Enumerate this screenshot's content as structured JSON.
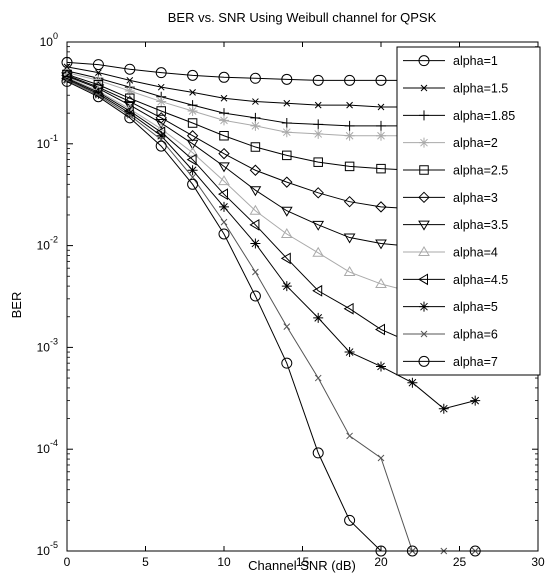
{
  "chart_data": {
    "type": "line",
    "title": "BER vs. SNR Using Weibull channel for QPSK",
    "xlabel": "Channel SNR (dB)",
    "ylabel": "BER",
    "xlim": [
      0,
      30
    ],
    "ylim": [
      1e-05,
      1
    ],
    "yscale": "log",
    "xticks": [
      0,
      5,
      10,
      15,
      20,
      25,
      30
    ],
    "yticks": [
      {
        "value": 1,
        "base": "10",
        "exp": "0"
      },
      {
        "value": 0.1,
        "base": "10",
        "exp": "-1"
      },
      {
        "value": 0.01,
        "base": "10",
        "exp": "-2"
      },
      {
        "value": 0.001,
        "base": "10",
        "exp": "-3"
      },
      {
        "value": 0.0001,
        "base": "10",
        "exp": "-4"
      },
      {
        "value": 1e-05,
        "base": "10",
        "exp": "-5"
      }
    ],
    "grid": false,
    "legend_position": "top-right",
    "x": [
      0,
      2,
      4,
      6,
      8,
      10,
      12,
      14,
      16,
      18,
      20,
      22,
      24,
      26
    ],
    "series": [
      {
        "name": "alpha=1",
        "marker": "circle",
        "color": "#000000",
        "values": [
          0.63,
          0.6,
          0.54,
          0.5,
          0.47,
          0.45,
          0.44,
          0.43,
          0.42,
          0.42,
          0.42,
          0.42,
          0.42,
          0.42
        ]
      },
      {
        "name": "alpha=1.5",
        "marker": "x",
        "color": "#000000",
        "values": [
          0.57,
          0.5,
          0.42,
          0.36,
          0.32,
          0.28,
          0.26,
          0.25,
          0.24,
          0.24,
          0.23,
          0.23,
          0.23,
          0.23
        ]
      },
      {
        "name": "alpha=1.85",
        "marker": "plus",
        "color": "#000000",
        "values": [
          0.52,
          0.44,
          0.36,
          0.29,
          0.24,
          0.2,
          0.18,
          0.16,
          0.155,
          0.15,
          0.15,
          0.15,
          0.15,
          0.15
        ]
      },
      {
        "name": "alpha=2",
        "marker": "star",
        "color": "#aaaaaa",
        "values": [
          0.5,
          0.42,
          0.33,
          0.26,
          0.21,
          0.17,
          0.15,
          0.13,
          0.125,
          0.12,
          0.12,
          0.12,
          0.12,
          0.12
        ]
      },
      {
        "name": "alpha=2.5",
        "marker": "square",
        "color": "#000000",
        "values": [
          0.48,
          0.38,
          0.28,
          0.21,
          0.16,
          0.12,
          0.093,
          0.077,
          0.066,
          0.06,
          0.057,
          0.055,
          0.054,
          0.054
        ]
      },
      {
        "name": "alpha=3",
        "marker": "diamond",
        "color": "#000000",
        "values": [
          0.47,
          0.36,
          0.26,
          0.18,
          0.12,
          0.08,
          0.055,
          0.042,
          0.033,
          0.027,
          0.024,
          0.023,
          0.022,
          0.022
        ]
      },
      {
        "name": "alpha=3.5",
        "marker": "triangle-down",
        "color": "#000000",
        "values": [
          0.46,
          0.35,
          0.24,
          0.16,
          0.1,
          0.06,
          0.035,
          0.022,
          0.016,
          0.012,
          0.0105,
          0.0098,
          0.0095,
          0.0095
        ]
      },
      {
        "name": "alpha=4",
        "marker": "triangle-up",
        "color": "#aaaaaa",
        "values": [
          0.45,
          0.33,
          0.22,
          0.14,
          0.082,
          0.043,
          0.022,
          0.013,
          0.0085,
          0.0055,
          0.0042,
          0.0035,
          0.0032,
          0.003
        ]
      },
      {
        "name": "alpha=4.5",
        "marker": "triangle-left",
        "color": "#000000",
        "values": [
          0.44,
          0.32,
          0.21,
          0.13,
          0.07,
          0.032,
          0.016,
          0.0075,
          0.0036,
          0.0024,
          0.0015,
          0.0011,
          0.0009,
          0.0009
        ]
      },
      {
        "name": "alpha=5",
        "marker": "star",
        "color": "#000000",
        "values": [
          0.43,
          0.31,
          0.2,
          0.12,
          0.055,
          0.024,
          0.0105,
          0.004,
          0.00195,
          0.0009,
          0.00065,
          0.00045,
          0.00025,
          0.0003
        ]
      },
      {
        "name": "alpha=6",
        "marker": "x",
        "color": "#555555",
        "values": [
          0.42,
          0.3,
          0.19,
          0.11,
          0.047,
          0.017,
          0.0055,
          0.0016,
          0.0005,
          0.000135,
          8.2e-05,
          1e-05,
          1e-05,
          1e-05
        ]
      },
      {
        "name": "alpha=7",
        "marker": "circle",
        "color": "#000000",
        "values": [
          0.41,
          0.29,
          0.18,
          0.095,
          0.04,
          0.013,
          0.0032,
          0.0007,
          9.2e-05,
          2e-05,
          1e-05,
          1e-05,
          null,
          1e-05
        ]
      }
    ]
  }
}
